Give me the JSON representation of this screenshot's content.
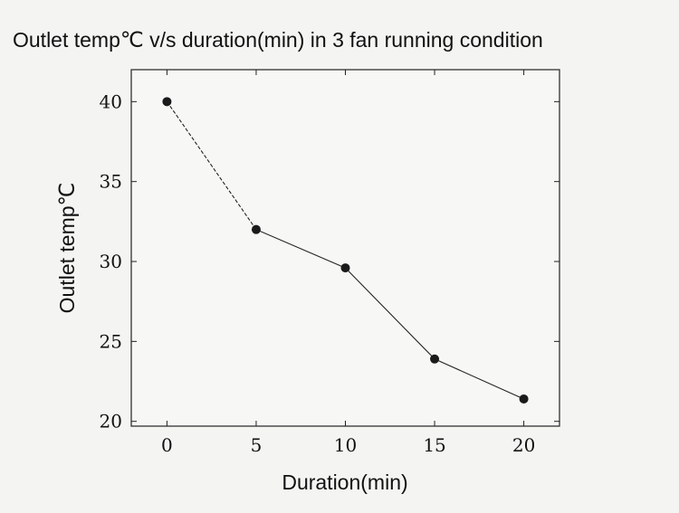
{
  "chart_data": {
    "type": "line",
    "title": "Outlet temp℃  v/s duration(min) in 3 fan running condition",
    "xlabel": "Duration(min)",
    "ylabel": "Outlet temp℃",
    "x": [
      0,
      5,
      10,
      15,
      20
    ],
    "series": [
      {
        "values": [
          40,
          32,
          29.6,
          23.9,
          21.4
        ]
      }
    ],
    "xlim": [
      -2,
      22
    ],
    "ylim": [
      19.7,
      42
    ],
    "xticks": [
      0,
      5,
      10,
      15,
      20
    ],
    "yticks": [
      20,
      25,
      30,
      35,
      40
    ],
    "grid": false,
    "legend": "none"
  }
}
